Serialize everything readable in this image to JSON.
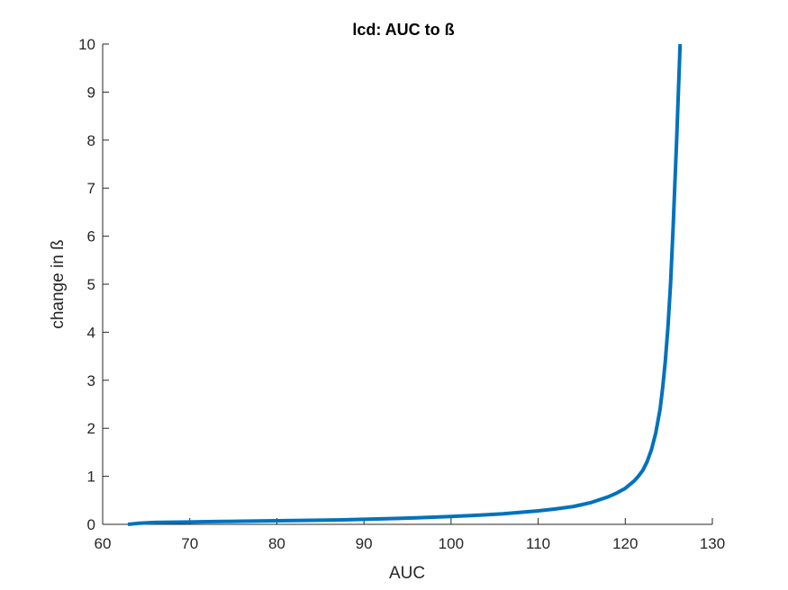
{
  "chart_data": {
    "type": "line",
    "title": "lcd: AUC to ß",
    "xlabel": "AUC",
    "ylabel": "change in ß",
    "xlim": [
      60,
      130
    ],
    "ylim": [
      0,
      10
    ],
    "xticks": [
      "60",
      "70",
      "80",
      "90",
      "100",
      "110",
      "120",
      "130"
    ],
    "yticks": [
      "0",
      "1",
      "2",
      "3",
      "4",
      "5",
      "6",
      "7",
      "8",
      "9",
      "10"
    ],
    "grid": false,
    "box": false,
    "series": [
      {
        "color": "#0072BD",
        "x": [
          62.9,
          64,
          65,
          66,
          68,
          70,
          72,
          74,
          76,
          78,
          80,
          82,
          84,
          86,
          88,
          90,
          92,
          94,
          96,
          98,
          100,
          102,
          104,
          106,
          108,
          110,
          112,
          114,
          115,
          116,
          117,
          118,
          119,
          120,
          121,
          121.5,
          122,
          122.5,
          123,
          123.5,
          124,
          124.3,
          124.6,
          124.9,
          125.2,
          125.5,
          125.7,
          125.9,
          126.1,
          126.3
        ],
        "y": [
          0.0,
          0.02,
          0.03,
          0.04,
          0.045,
          0.05,
          0.055,
          0.06,
          0.065,
          0.07,
          0.075,
          0.08,
          0.085,
          0.09,
          0.095,
          0.105,
          0.115,
          0.125,
          0.135,
          0.15,
          0.165,
          0.18,
          0.2,
          0.22,
          0.25,
          0.28,
          0.32,
          0.37,
          0.41,
          0.45,
          0.51,
          0.57,
          0.65,
          0.75,
          0.9,
          1.0,
          1.12,
          1.3,
          1.55,
          1.9,
          2.4,
          2.85,
          3.4,
          4.1,
          5.0,
          6.2,
          7.1,
          8.0,
          9.0,
          10.0
        ]
      }
    ]
  }
}
